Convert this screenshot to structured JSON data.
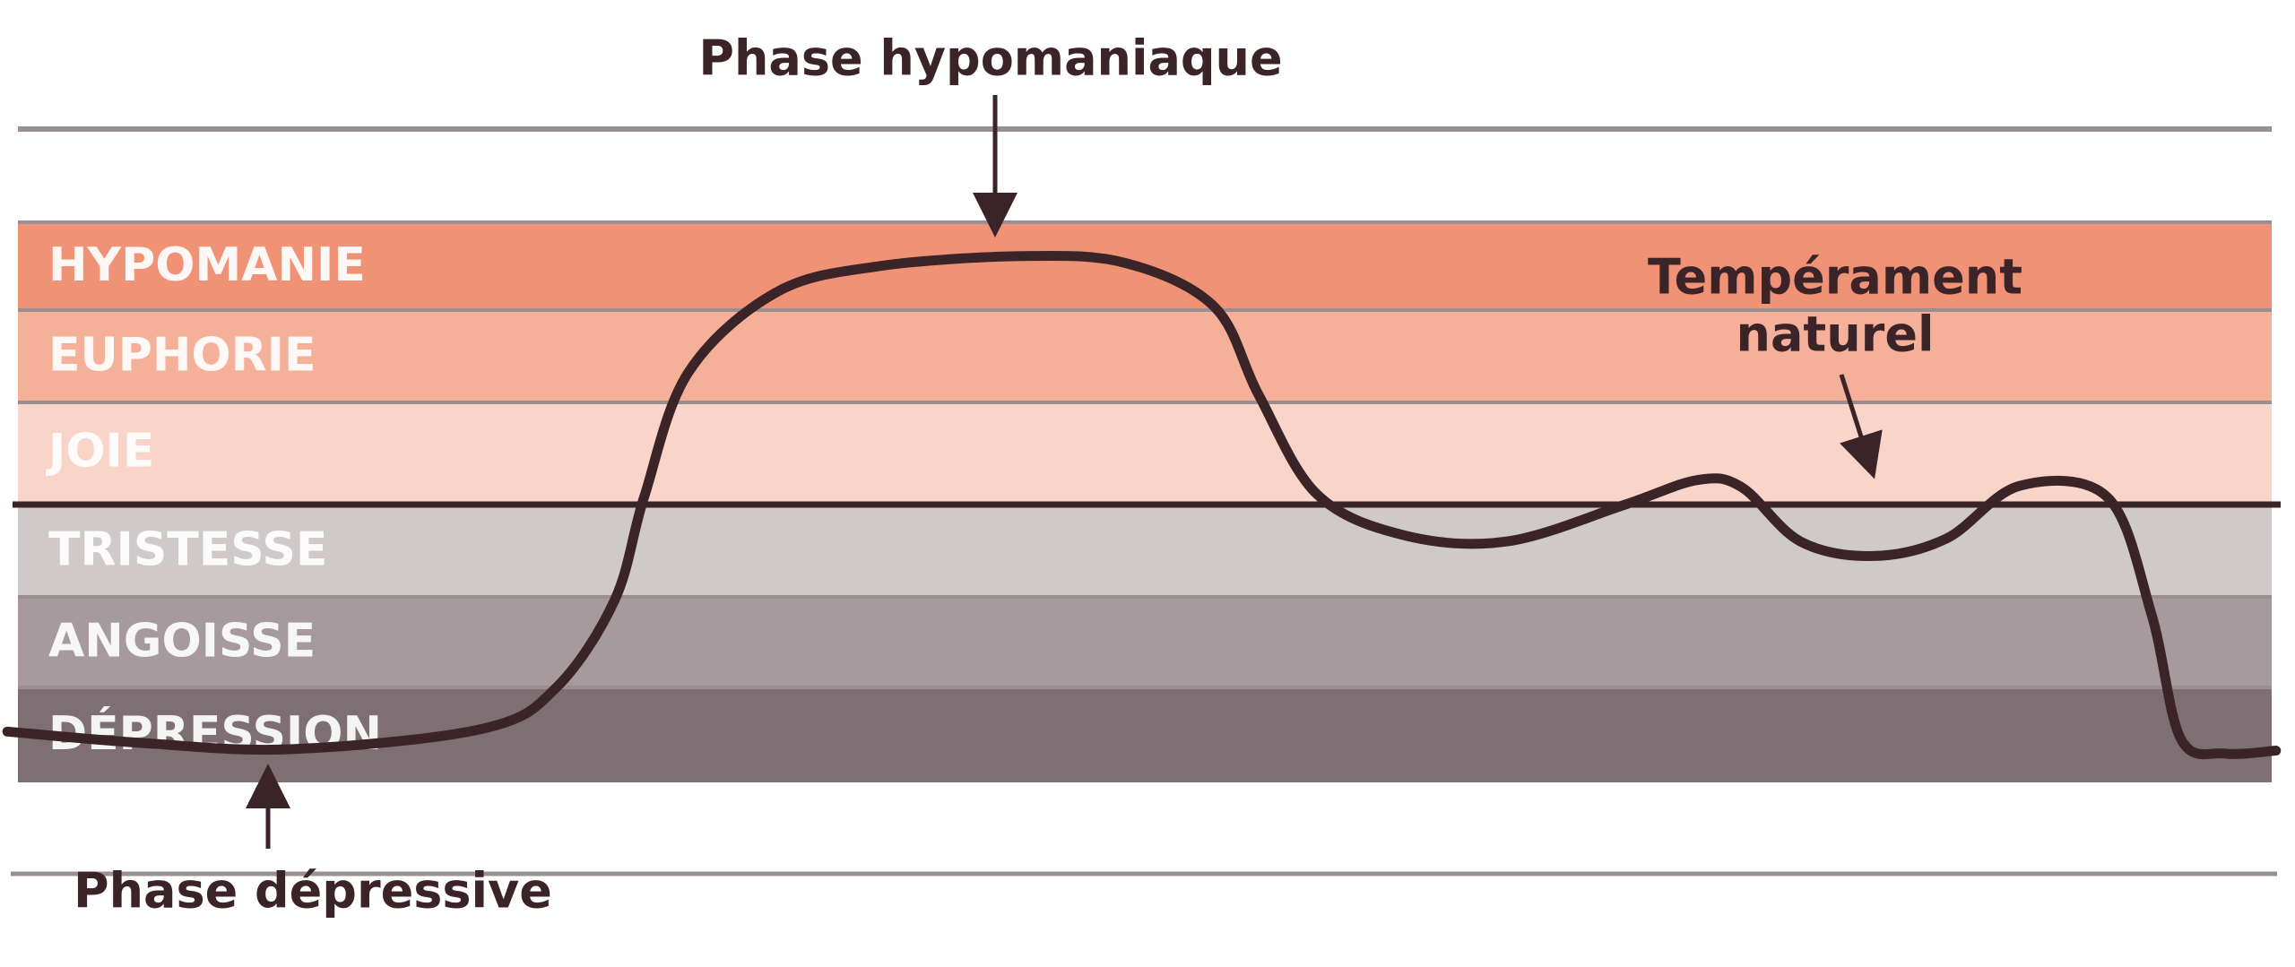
{
  "bands": [
    {
      "label": "HYPOMANIE"
    },
    {
      "label": "EUPHORIE"
    },
    {
      "label": "JOIE"
    },
    {
      "label": "TRISTESSE"
    },
    {
      "label": "ANGOISSE"
    },
    {
      "label": "DÉPRESSION"
    }
  ],
  "annotations": {
    "top": "Phase hypomaniaque",
    "right": [
      "Tempérament",
      "naturel"
    ],
    "bottom": "Phase dépressive"
  }
}
